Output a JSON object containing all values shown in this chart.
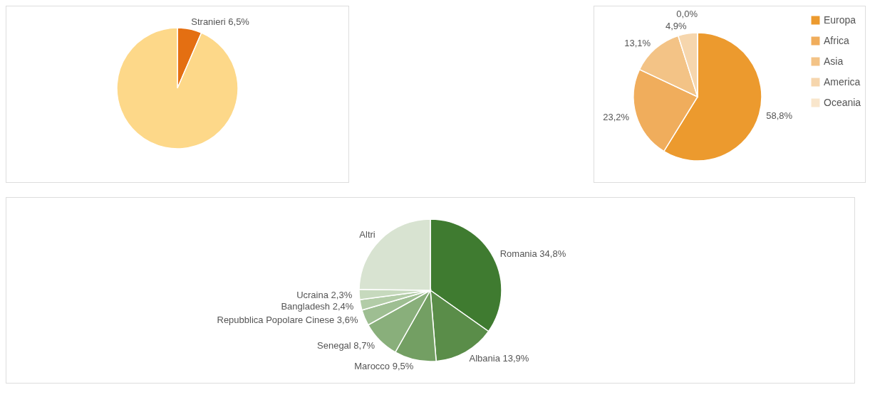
{
  "chart_data": [
    {
      "type": "pie",
      "categories": [
        "Stranieri",
        null
      ],
      "values": [
        6.5,
        93.5
      ],
      "colors": [
        "#e46f12",
        "#fdd889"
      ],
      "value_labels": [
        "6,5%",
        null
      ]
    },
    {
      "type": "pie",
      "categories": [
        "Europa",
        "Africa",
        "Asia",
        "America",
        "Oceania"
      ],
      "values": [
        58.8,
        23.2,
        13.1,
        4.9,
        0.0
      ],
      "colors": [
        "#ec9a2e",
        "#f0ad5c",
        "#f3c386",
        "#f6d6ad",
        "#f9e6cc"
      ],
      "value_labels": [
        "58,8%",
        "23,2%",
        "13,1%",
        "4,9%",
        "0,0%"
      ],
      "legend": "right"
    },
    {
      "type": "pie",
      "categories": [
        "Romania",
        "Albania",
        "Marocco",
        "Senegal",
        "Repubblica Popolare Cinese",
        "Bangladesh",
        "Ucraina",
        "Altri"
      ],
      "values": [
        34.8,
        13.9,
        9.5,
        8.7,
        3.6,
        2.4,
        2.3,
        24.8
      ],
      "colors": [
        "#3f7b30",
        "#5a8d49",
        "#739f63",
        "#89af7b",
        "#9ebe92",
        "#b2cca7",
        "#c6d9bd",
        "#d8e3d1"
      ],
      "value_labels": [
        "34,8%",
        "13,9%",
        "9,5%",
        "8,7%",
        "3,6%",
        "2,4%",
        "2,3%",
        null
      ]
    }
  ]
}
